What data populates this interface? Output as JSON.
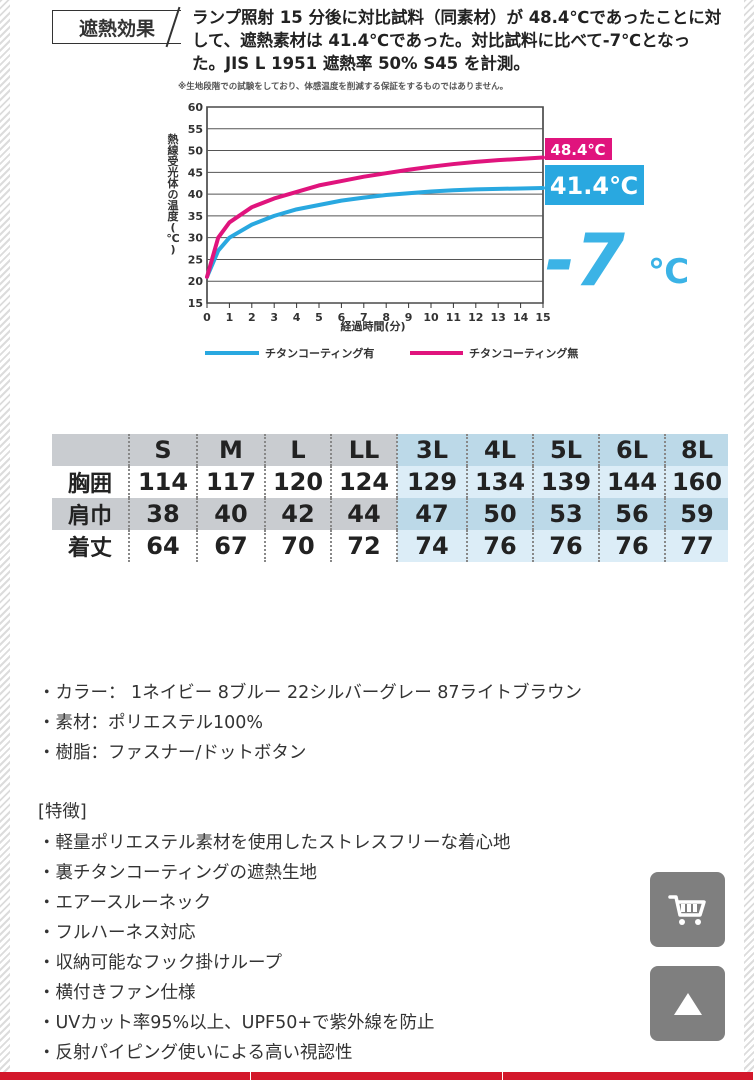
{
  "heat_effect": {
    "title": "遮熱効果",
    "description": "ランプ照射 15 分後に対比試料（同素材）が 48.4℃であったことに対して、遮熱素材は 41.4℃であった。対比試料に比べて-7℃となった。JIS L 1951 遮熱率 50% S45 を計測。",
    "note": "※生地段階での試験をしており、体感温度を削減する保証をするものではありません。"
  },
  "chart_data": {
    "type": "line",
    "xlabel": "経過時間(分)",
    "ylabel": "熱線受光体の温度(℃)",
    "xlim": [
      0,
      15
    ],
    "ylim": [
      15,
      60
    ],
    "x_ticks": [
      "0",
      "1",
      "2",
      "3",
      "4",
      "5",
      "6",
      "7",
      "8",
      "9",
      "10",
      "11",
      "12",
      "13",
      "14",
      "15"
    ],
    "y_ticks": [
      "15",
      "20",
      "25",
      "30",
      "35",
      "40",
      "45",
      "50",
      "55",
      "60"
    ],
    "grid": true,
    "legend_position": "bottom",
    "series": [
      {
        "name": "チタンコーティング有",
        "color": "#29a8e0",
        "x": [
          0,
          0.5,
          1,
          2,
          3,
          4,
          5,
          6,
          7,
          8,
          9,
          10,
          11,
          12,
          13,
          14,
          15
        ],
        "y": [
          21,
          27,
          30,
          33,
          35,
          36.5,
          37.5,
          38.5,
          39.2,
          39.8,
          40.2,
          40.6,
          40.9,
          41.1,
          41.2,
          41.3,
          41.4
        ]
      },
      {
        "name": "チタンコーティング無",
        "color": "#e0147d",
        "x": [
          0,
          0.5,
          1,
          2,
          3,
          4,
          5,
          6,
          7,
          8,
          9,
          10,
          11,
          12,
          13,
          14,
          15
        ],
        "y": [
          21,
          30,
          33.5,
          37,
          39,
          40.5,
          42,
          43,
          44,
          44.8,
          45.6,
          46.3,
          46.9,
          47.4,
          47.8,
          48.1,
          48.4
        ]
      }
    ],
    "annotations": {
      "uncoated_end": "48.4℃",
      "coated_end": "41.4℃",
      "diff_value": "-7",
      "diff_unit": "℃"
    }
  },
  "size_table": {
    "headers": [
      "",
      "S",
      "M",
      "L",
      "LL",
      "3L",
      "4L",
      "5L",
      "6L",
      "8L"
    ],
    "rows": [
      {
        "label": "胸囲",
        "values": [
          "114",
          "117",
          "120",
          "124",
          "129",
          "134",
          "139",
          "144",
          "160"
        ]
      },
      {
        "label": "肩巾",
        "values": [
          "38",
          "40",
          "42",
          "44",
          "47",
          "50",
          "53",
          "56",
          "59"
        ]
      },
      {
        "label": "着丈",
        "values": [
          "64",
          "67",
          "70",
          "72",
          "74",
          "76",
          "76",
          "76",
          "77"
        ]
      }
    ]
  },
  "specs": [
    "・カラー： 1ネイビー 8ブルー 22シルバーグレー 87ライトブラウン",
    "・素材：ポリエステル100%",
    "・樹脂：ファスナー/ドットボタン"
  ],
  "features_title": "[特徴]",
  "features": [
    "・軽量ポリエステル素材を使用したストレスフリーな着心地",
    "・裏チタンコーティングの遮熱生地",
    "・エアースルーネック",
    "・フルハーネス対応",
    "・収納可能なフック掛けループ",
    "・横付きファン仕様",
    "・UVカット率95%以上、UPF50+で紫外線を防止",
    "・反射パイピング使いによる高い視認性"
  ],
  "buttons": {
    "cart_icon": "cart-icon",
    "top_icon": "arrow-up-icon"
  },
  "colors": {
    "accent_red": "#d3182b",
    "coated_blue": "#29a8e0",
    "uncoated_magenta": "#e0147d",
    "button_gray": "#7f7f7f"
  }
}
